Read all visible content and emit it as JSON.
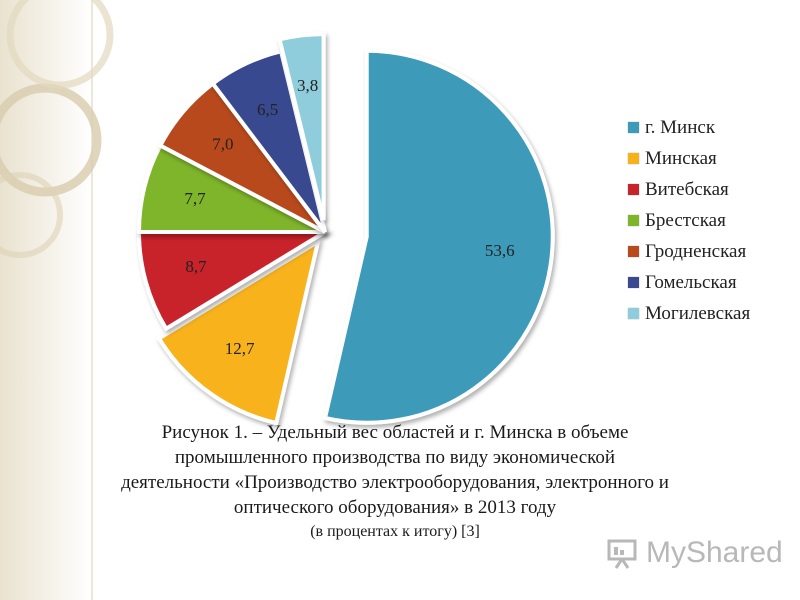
{
  "chart_data": {
    "type": "pie",
    "exploded": true,
    "categories": [
      "г. Минск",
      "Минская",
      "Витебская",
      "Брестская",
      "Гродненская",
      "Гомельская",
      "Могилевская"
    ],
    "values": [
      53.6,
      12.7,
      8.7,
      7.7,
      7.0,
      6.5,
      3.8
    ],
    "data_labels": [
      "53,6",
      "12,7",
      "8,7",
      "7,7",
      "7,0",
      "6,5",
      "3,8"
    ],
    "colors": [
      "#3d9bb9",
      "#f7b21b",
      "#c8222a",
      "#7fb52a",
      "#b84a1c",
      "#39488f",
      "#8fcddc"
    ],
    "legend_placement": "right",
    "title": ""
  },
  "caption": {
    "lines": [
      "Рисунок 1. – Удельный вес областей и г. Минска в объеме",
      "промышленного производства по виду экономической",
      "деятельности «Производство электрооборудования, электронного и",
      "оптического оборудования» в 2013 году"
    ],
    "note": "(в процентах к итогу) [3]"
  },
  "watermark": {
    "text": "MyShared",
    "icon": "presentation-board-icon",
    "color": "#b8b8b8"
  }
}
